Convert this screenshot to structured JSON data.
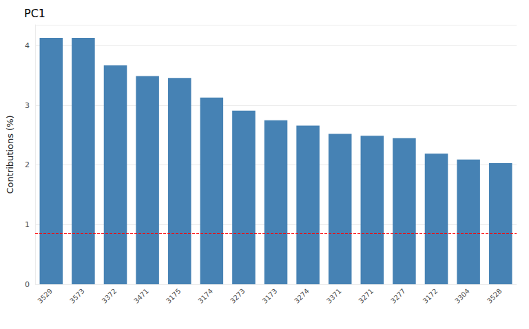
{
  "chart_data": {
    "type": "bar",
    "title": "PC1",
    "y_label": "Contributions (%)",
    "categories": [
      "3529",
      "3573",
      "3372",
      "3471",
      "3175",
      "3174",
      "3273",
      "3173",
      "3274",
      "3371",
      "3271",
      "3277",
      "3172",
      "3304",
      "3528"
    ],
    "values": [
      4.13,
      4.13,
      3.67,
      3.49,
      3.46,
      3.13,
      2.91,
      2.75,
      2.66,
      2.52,
      2.49,
      2.45,
      2.19,
      2.09,
      2.03
    ],
    "color": "#4682b4",
    "threshold": 0.85,
    "threshold_color": "#ff0000",
    "ylim": [
      0,
      4.35
    ],
    "yticks": [
      0,
      1,
      2,
      3,
      4
    ],
    "grid": true
  }
}
